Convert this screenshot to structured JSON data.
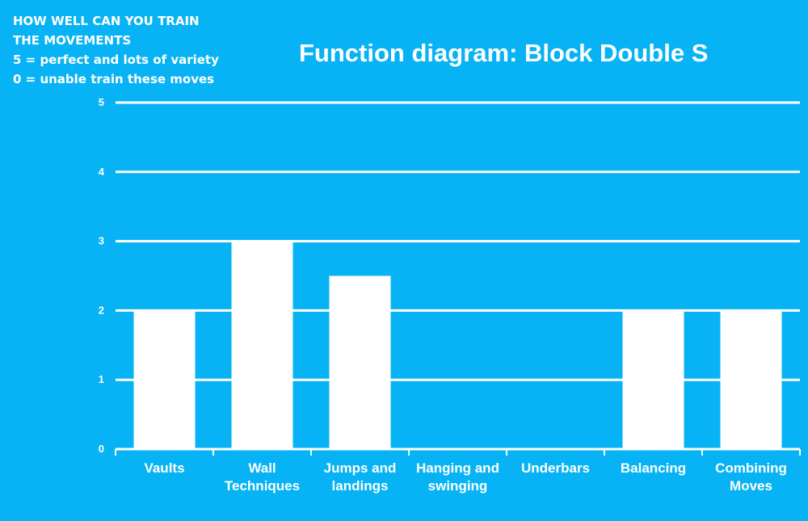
{
  "colors": {
    "background": "#07b3f4",
    "bars": "#ffffff",
    "grid": "#ffffff",
    "text": "#ffffff"
  },
  "note": {
    "lines": [
      "HOW WELL CAN YOU TRAIN",
      "THE MOVEMENTS",
      "5 = perfect and lots of variety",
      "0 = unable train these moves"
    ]
  },
  "chart_data": {
    "type": "bar",
    "title": "Function diagram: Block Double S",
    "xlabel": "",
    "ylabel": "",
    "categories": [
      [
        "Vaults"
      ],
      [
        "Wall",
        "Techniques"
      ],
      [
        "Jumps and",
        "landings"
      ],
      [
        "Hanging and",
        "swinging"
      ],
      [
        "Underbars"
      ],
      [
        "Balancing"
      ],
      [
        "Combining",
        "Moves"
      ]
    ],
    "values": [
      2,
      3,
      2.5,
      0,
      0,
      2,
      2
    ],
    "ylim": [
      0,
      5
    ],
    "yticks": [
      "0",
      "1",
      "2",
      "3",
      "4",
      "5"
    ],
    "grid": true,
    "legend": "none"
  }
}
